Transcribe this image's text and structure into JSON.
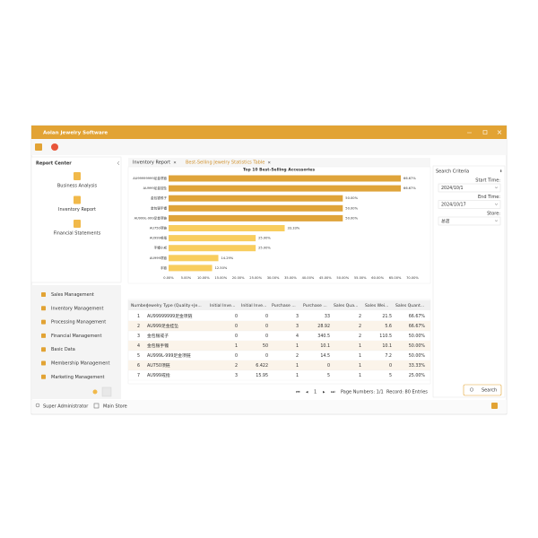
{
  "window": {
    "title": "Aolan Jewelry Software"
  },
  "sidebar": {
    "title": "Report Center",
    "reports": [
      "Business Analysis",
      "Inventory Report",
      "Financial Statements"
    ],
    "menu": [
      "Sales Management",
      "Inventory Management",
      "Processing Management",
      "Financial Management",
      "Basic Data",
      "Membership Management",
      "Marketing Management"
    ]
  },
  "tabs": [
    "Inventory Report",
    "Best-Selling Jewelry Statistics Table"
  ],
  "chart": {
    "type": "bar",
    "title": "Top 10 Best-Selling Accessories",
    "categories": [
      "AU99999999足金项链",
      "AU999足金挂坠",
      "金包银戒子",
      "金包银手镯",
      "AU999L-999足金项链",
      "AU750项链",
      "AU999戒指",
      "手镯小戒",
      "AU999项链",
      "手链"
    ],
    "values": [
      66.67,
      66.67,
      50,
      50,
      50,
      33.33,
      25,
      25,
      14.29,
      12.5
    ],
    "value_labels": [
      "66.67%",
      "66.67%",
      "50.00%",
      "50.00%",
      "50.00%",
      "33.33%",
      "25.00%",
      "25.00%",
      "14.29%",
      "12.50%"
    ],
    "colors": [
      "#dfa43a",
      "#dfa43a",
      "#dfa43a",
      "#dfa43a",
      "#dfa43a",
      "#f8cd5e",
      "#f8cd5e",
      "#f8cd5e",
      "#f8cd5e",
      "#f8cd5e"
    ],
    "xlim": [
      0,
      70
    ],
    "xticks": [
      {
        "value": 0,
        "label": "0.00%"
      },
      {
        "value": 5,
        "label": "5.00%"
      },
      {
        "value": 10,
        "label": "10.00%"
      },
      {
        "value": 15,
        "label": "15.00%"
      },
      {
        "value": 20,
        "label": "20.00%"
      },
      {
        "value": 25,
        "label": "25.00%"
      },
      {
        "value": 30,
        "label": "30.00%"
      },
      {
        "value": 35,
        "label": "35.00%"
      },
      {
        "value": 40,
        "label": "40.00%"
      },
      {
        "value": 45,
        "label": "45.00%"
      },
      {
        "value": 50,
        "label": "50.00%"
      },
      {
        "value": 55,
        "label": "55.00%"
      },
      {
        "value": 60,
        "label": "60.00%"
      },
      {
        "value": 65,
        "label": "65.00%"
      },
      {
        "value": 70,
        "label": "70.00%"
      }
    ],
    "grid": false
  },
  "table": {
    "columns": [
      "Number",
      "Jewelry Type (Quality+Je...",
      "Initial Inve...",
      "Initial Inve...",
      "Purchase ...",
      "Purchase ...",
      "Sales Qua...",
      "Sales Wei...",
      "Sales Quant..."
    ],
    "rows": [
      [
        "1",
        "AU99999999足金项链",
        "0",
        "0",
        "3",
        "33",
        "2",
        "21.5",
        "66.67%"
      ],
      [
        "2",
        "AU999足金挂坠",
        "0",
        "0",
        "3",
        "28.92",
        "2",
        "5.6",
        "66.67%"
      ],
      [
        "3",
        "金包银戒子",
        "0",
        "0",
        "4",
        "340.5",
        "2",
        "110.5",
        "50.00%"
      ],
      [
        "4",
        "金包银手镯",
        "1",
        "50",
        "1",
        "10.1",
        "1",
        "10.1",
        "50.00%"
      ],
      [
        "5",
        "AU999L-999足金项链",
        "0",
        "0",
        "2",
        "14.5",
        "1",
        "7.2",
        "50.00%"
      ],
      [
        "6",
        "AU750项链",
        "2",
        "6.422",
        "1",
        "0",
        "1",
        "0",
        "33.33%"
      ],
      [
        "7",
        "AU999戒指",
        "3",
        "15.95",
        "1",
        "5",
        "1",
        "5",
        "25.00%"
      ]
    ]
  },
  "pagination": {
    "page": "1",
    "page_numbers": "Page Numbers: 1/1",
    "records": "Record: 80 Entries"
  },
  "search": {
    "title": "Search Criteria",
    "fields": [
      {
        "label": "Start Time:",
        "value": "2024/10/1"
      },
      {
        "label": "End Time:",
        "value": "2024/10/17"
      },
      {
        "label": "Store:",
        "value": "总店"
      }
    ],
    "button": "Search"
  },
  "status": {
    "user": "Super Administrator",
    "store": "Main Store"
  }
}
